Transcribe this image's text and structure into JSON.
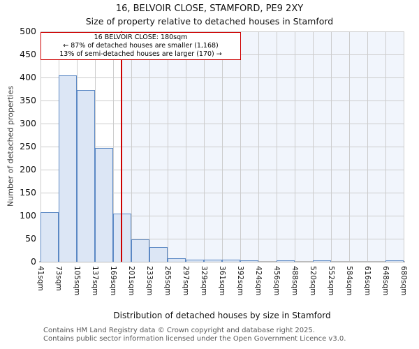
{
  "page": {
    "title": "16, BELVOIR CLOSE, STAMFORD, PE9 2XY",
    "subtitle": "Size of property relative to detached houses in Stamford"
  },
  "annotation": {
    "line1": "16 BELVOIR CLOSE: 180sqm",
    "line2": "← 87% of detached houses are smaller (1,168)",
    "line3": "13% of semi-detached houses are larger (170) →"
  },
  "chart_data": {
    "type": "bar",
    "title": "16, BELVOIR CLOSE, STAMFORD, PE9 2XY",
    "subtitle": "Size of property relative to detached houses in Stamford",
    "xlabel": "Distribution of detached houses by size in Stamford",
    "ylabel": "Number of detached properties",
    "x_tick_labels": [
      "41sqm",
      "73sqm",
      "105sqm",
      "137sqm",
      "169sqm",
      "201sqm",
      "233sqm",
      "265sqm",
      "297sqm",
      "329sqm",
      "361sqm",
      "392sqm",
      "424sqm",
      "456sqm",
      "488sqm",
      "520sqm",
      "552sqm",
      "584sqm",
      "616sqm",
      "648sqm",
      "680sqm"
    ],
    "bin_edges_sqm": [
      41,
      73,
      105,
      137,
      169,
      201,
      233,
      265,
      297,
      329,
      361,
      392,
      424,
      456,
      488,
      520,
      552,
      584,
      616,
      648,
      680
    ],
    "values": [
      107,
      404,
      372,
      247,
      105,
      48,
      32,
      7,
      4,
      5,
      4,
      2,
      0,
      2,
      0,
      1,
      0,
      0,
      0,
      1
    ],
    "y_ticks": [
      0,
      50,
      100,
      150,
      200,
      250,
      300,
      350,
      400,
      450,
      500
    ],
    "ylim": [
      0,
      500
    ],
    "grid": true,
    "legend": "none",
    "marker": {
      "label": "16 BELVOIR CLOSE",
      "value_sqm": 180,
      "fraction_of_x_axis": 0.223
    },
    "colors": {
      "bar_fill": "#dce6f5",
      "bar_edge": "#5b88c4",
      "marker_red": "#cc0000",
      "region_tint": "#f1f5fc",
      "gridline": "#cccccc",
      "baseline": "#bcbcbc"
    }
  },
  "footer": {
    "line1": "Contains HM Land Registry data © Crown copyright and database right 2025.",
    "line2": "Contains public sector information licensed under the Open Government Licence v3.0."
  }
}
